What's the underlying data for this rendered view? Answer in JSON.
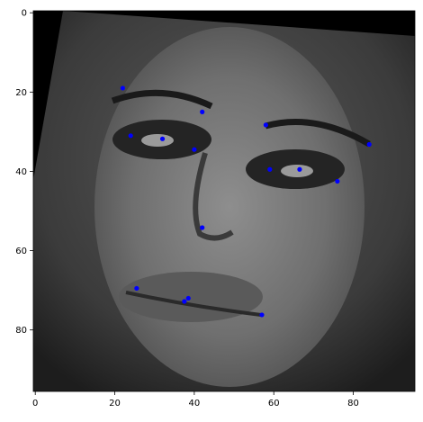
{
  "chart_data": {
    "type": "scatter",
    "title": "",
    "xlabel": "",
    "ylabel": "",
    "xlim": [
      -0.5,
      95.5
    ],
    "ylim": [
      95.5,
      -0.5
    ],
    "y_inverted": true,
    "xticks": [
      0,
      20,
      40,
      60,
      80
    ],
    "yticks": [
      0,
      20,
      40,
      60,
      80
    ],
    "grid": false,
    "legend": "none",
    "background": "grayscale face photograph",
    "marker_color": "#0000ff",
    "series": [
      {
        "points": [
          {
            "x": 22.0,
            "y": 19.0
          },
          {
            "x": 42.0,
            "y": 25.0
          },
          {
            "x": 58.0,
            "y": 28.3
          },
          {
            "x": 84.0,
            "y": 33.2
          },
          {
            "x": 24.0,
            "y": 31.0
          },
          {
            "x": 32.0,
            "y": 31.8
          },
          {
            "x": 40.0,
            "y": 34.5
          },
          {
            "x": 59.0,
            "y": 39.5
          },
          {
            "x": 66.5,
            "y": 39.5
          },
          {
            "x": 76.0,
            "y": 42.5
          },
          {
            "x": 42.0,
            "y": 54.2
          },
          {
            "x": 25.5,
            "y": 69.5
          },
          {
            "x": 38.5,
            "y": 72.0
          },
          {
            "x": 37.5,
            "y": 72.8
          },
          {
            "x": 57.0,
            "y": 76.2
          }
        ]
      }
    ]
  }
}
